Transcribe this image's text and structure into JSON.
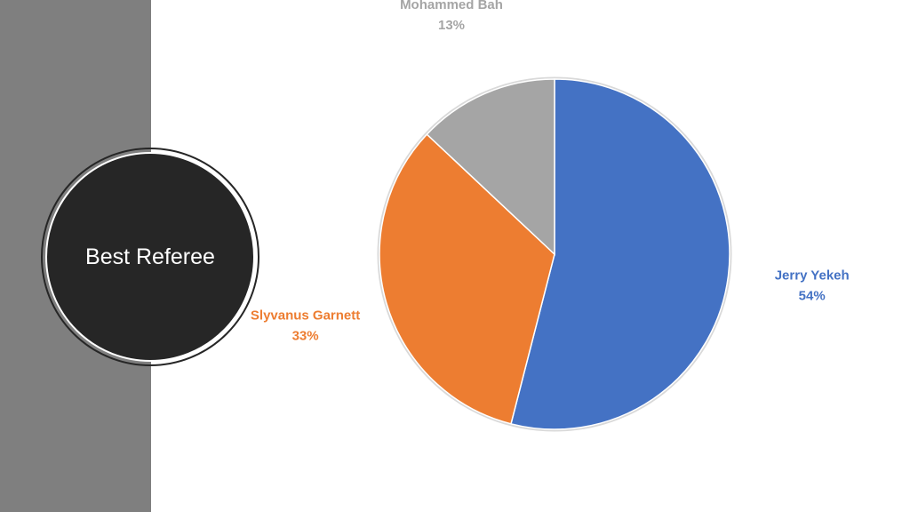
{
  "slide": {
    "title": "Best Referee"
  },
  "colors": {
    "side_band": "#7f7f7f",
    "title_circle": "#262626"
  },
  "chart_data": {
    "type": "pie",
    "title": "",
    "start_angle_deg": 0,
    "direction": "clockwise",
    "slices": [
      {
        "name": "Jerry Yekeh",
        "value": 54,
        "label": "54%",
        "color": "#4472C4"
      },
      {
        "name": "Slyvanus Garnett",
        "value": 33,
        "label": "33%",
        "color": "#ED7D31"
      },
      {
        "name": "Mohammed Bah",
        "value": 13,
        "label": "13%",
        "color": "#A5A5A5"
      }
    ],
    "legend": "none",
    "data_labels": "outside"
  }
}
